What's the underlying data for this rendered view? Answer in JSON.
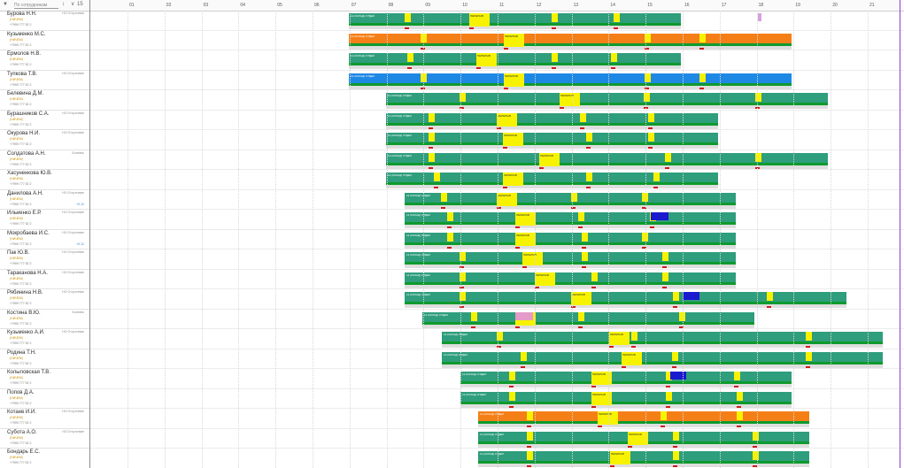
{
  "left_header": {
    "filter_icon": "filter-icon",
    "search_placeholder": "По сотрудникам",
    "sort_label": "↕",
    "refresh_label": "15"
  },
  "employees": [
    {
      "name": "Бурова Н.Н.",
      "role": "(НИЧЕМ)",
      "phone": "+7999 777 52 2",
      "status": "НО Отсутствие",
      "note": ""
    },
    {
      "name": "Кузьменко М.С.",
      "role": "(НИЧЕМ)",
      "phone": "+7999 777 52 2",
      "status": "",
      "note": ""
    },
    {
      "name": "Ермолов Н.В.",
      "role": "(НИЧЕМ)",
      "phone": "+7999 777 52 2",
      "status": "",
      "note": ""
    },
    {
      "name": "Тупкова Т.В.",
      "role": "(НИЧЕМ)",
      "phone": "+7999 777 52 2",
      "status": "НО Отсутствие",
      "note": ""
    },
    {
      "name": "Белевина Д.М.",
      "role": "(НИЧЕМ)",
      "phone": "+7999 777 52 2",
      "status": "",
      "note": ""
    },
    {
      "name": "Бурашников С.А.",
      "role": "(НИЧЕМ)",
      "phone": "+7999 777 52 2",
      "status": "НО Отсутствие",
      "note": ""
    },
    {
      "name": "Окурова Н.И.",
      "role": "(НИЧЕМ)",
      "phone": "+7999 777 52 2",
      "status": "НО Отсутствие",
      "note": ""
    },
    {
      "name": "Солдатова А.Н.",
      "role": "(НИЧЕМ)",
      "phone": "+7999 777 52 2",
      "status": "Болезнь",
      "note": ""
    },
    {
      "name": "Хасуненкова Ю.В.",
      "role": "(НИЧЕМ)",
      "phone": "+7999 777 52 2",
      "status": "",
      "note": ""
    },
    {
      "name": "Данилова А.Н.",
      "role": "(НИЧЕМ)",
      "phone": "+7999 777 52 2",
      "status": "НО Отсутствие",
      "note": "+0:12"
    },
    {
      "name": "Ильиенко Е.Р.",
      "role": "(НИЧЕМ)",
      "phone": "+7999 777 52 2",
      "status": "НО Отсутствие",
      "note": ""
    },
    {
      "name": "Мокробаева И.С.",
      "role": "(НИЧЕМ)",
      "phone": "+7999 777 52 2",
      "status": "НО Отсутствие",
      "note": "+0:12"
    },
    {
      "name": "Пак Ю.В.",
      "role": "(НИЧЕМ)",
      "phone": "+7999 777 52 2",
      "status": "НО Отсутствие",
      "note": ""
    },
    {
      "name": "Тараканова Н.А.",
      "role": "(НИЧЕМ)",
      "phone": "+7999 777 52 2",
      "status": "НО Отсутствие",
      "note": ""
    },
    {
      "name": "Рябинина Н.В.",
      "role": "(НИЧЕМ)",
      "phone": "+7999 777 52 2",
      "status": "НО Отсутствие",
      "note": ""
    },
    {
      "name": "Костина В.Ю.",
      "role": "(НИЧЕМ)",
      "phone": "+7999 777 52 2",
      "status": "Болезнь",
      "note": ""
    },
    {
      "name": "Кузьменко А.И.",
      "role": "(НИЧЕМ)",
      "phone": "+7999 777 52 2",
      "status": "НО Отсутствие",
      "note": ""
    },
    {
      "name": "Родина Т.Н.",
      "role": "(НИЧЕМ)",
      "phone": "+7999 777 52 2",
      "status": "",
      "note": ""
    },
    {
      "name": "Колыловская Т.В.",
      "role": "(НИЧЕМ)",
      "phone": "+7999 777 52 2",
      "status": "",
      "note": ""
    },
    {
      "name": "Попов Д.А.",
      "role": "(НИЧЕМ)",
      "phone": "+7999 777 52 2",
      "status": "",
      "note": ""
    },
    {
      "name": "Котаев И.И.",
      "role": "(НИЧЕМ)",
      "phone": "+7999 777 52 2",
      "status": "НО Отсутствие",
      "note": ""
    },
    {
      "name": "Субота А.О.",
      "role": "(НИЧЕМ)",
      "phone": "+7999 777 52 2",
      "status": "НО Отсутствие",
      "note": ""
    },
    {
      "name": "Бондарь Е.С.",
      "role": "(НИЧЕМ)",
      "phone": "+7999 777 52 2",
      "status": "",
      "note": ""
    }
  ],
  "timeline": {
    "hour_labels": [
      "01",
      "02",
      "03",
      "04",
      "05",
      "06",
      "07",
      "08",
      "09",
      "10",
      "11",
      "12",
      "13",
      "14",
      "15",
      "16",
      "17",
      "18",
      "19",
      "20",
      "21",
      "22"
    ],
    "bar_label": "12 (СКЛАД) ОТДЕЛ",
    "break_label": "ПЕРЕРЫВ"
  },
  "colors": {
    "shift_green": "#2e9e7c",
    "shift_orange": "#f57f17",
    "shift_blue": "#1e88e5",
    "break_yellow": "#f7f200",
    "timeline_green": "#0e9a2e",
    "warning_red": "#d21a1a",
    "event_blue": "#1a1acf",
    "event_pink": "#e59bc8",
    "now_line": "#8a3fd1"
  }
}
